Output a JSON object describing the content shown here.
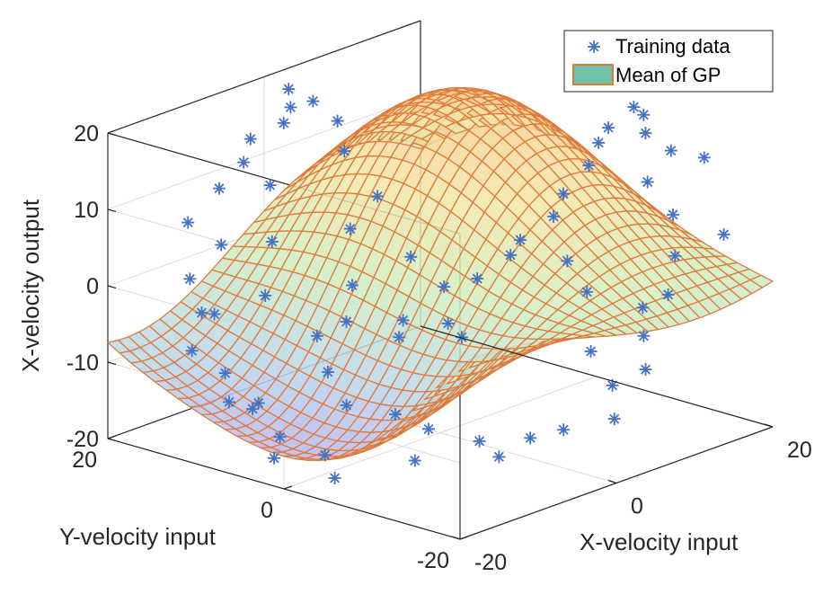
{
  "chart_data": {
    "type": "surface3d",
    "title": "",
    "xlabel": "X-velocity input",
    "ylabel": "Y-velocity input",
    "zlabel": "X-velocity output",
    "xlim": [
      -20,
      20
    ],
    "ylim": [
      -20,
      20
    ],
    "zlim": [
      -20,
      20
    ],
    "x_ticks": [
      -20,
      0,
      20
    ],
    "y_ticks": [
      -20,
      0,
      20
    ],
    "z_ticks": [
      -20,
      -10,
      0,
      10,
      20
    ],
    "grid": true,
    "legend": {
      "position": "top-right",
      "entries": [
        {
          "label": "Training data",
          "marker": "asterisk",
          "color": "#4472c4"
        },
        {
          "label": "Mean of GP",
          "marker": "patch",
          "color": "#6fc3a8",
          "edge": "#e07a3c"
        }
      ]
    },
    "series": [
      {
        "name": "Training data",
        "kind": "scatter3d",
        "color": "#4472c4",
        "points": [
          [
            -18,
            -4,
            -18
          ],
          [
            -17,
            -2,
            -16
          ],
          [
            -19,
            2,
            -17
          ],
          [
            -16,
            4,
            -16
          ],
          [
            -15,
            8,
            -14
          ],
          [
            -12,
            10,
            -15
          ],
          [
            -18,
            8,
            -12
          ],
          [
            -14,
            12,
            -11
          ],
          [
            -16,
            14,
            -8
          ],
          [
            -12,
            15,
            -5
          ],
          [
            -17,
            12,
            -2
          ],
          [
            -14,
            16,
            0
          ],
          [
            -10,
            16,
            3
          ],
          [
            -12,
            18,
            6
          ],
          [
            -8,
            18,
            9
          ],
          [
            -6,
            17,
            12
          ],
          [
            -4,
            18,
            14
          ],
          [
            -2,
            16,
            16
          ],
          [
            0,
            17,
            17
          ],
          [
            -6,
            14,
            10
          ],
          [
            -8,
            12,
            4
          ],
          [
            -10,
            11,
            -2
          ],
          [
            -9,
            6,
            -6
          ],
          [
            -11,
            3,
            -9
          ],
          [
            -12,
            0,
            -12
          ],
          [
            -8,
            -2,
            -14
          ],
          [
            -6,
            -4,
            -16
          ],
          [
            -10,
            -6,
            -18
          ],
          [
            -4,
            -8,
            -17
          ],
          [
            -2,
            -12,
            -16
          ],
          [
            0,
            -14,
            -15
          ],
          [
            -6,
            -12,
            -17
          ],
          [
            2,
            -18,
            -13
          ],
          [
            6,
            -18,
            -8
          ],
          [
            4,
            -16,
            -10
          ],
          [
            8,
            -16,
            -5
          ],
          [
            10,
            -17,
            0
          ],
          [
            9,
            -15,
            -2
          ],
          [
            12,
            -16,
            4
          ],
          [
            14,
            -14,
            8
          ],
          [
            13,
            -12,
            12
          ],
          [
            16,
            -12,
            15
          ],
          [
            15,
            -10,
            17
          ],
          [
            17,
            -8,
            18
          ],
          [
            18,
            -6,
            18
          ],
          [
            17,
            -4,
            15
          ],
          [
            18,
            -2,
            12
          ],
          [
            19,
            0,
            8
          ],
          [
            18,
            2,
            4
          ],
          [
            19,
            4,
            0
          ],
          [
            17,
            6,
            -3
          ],
          [
            18,
            8,
            -6
          ],
          [
            16,
            10,
            -9
          ],
          [
            14,
            12,
            -10
          ],
          [
            12,
            14,
            -6
          ],
          [
            10,
            16,
            2
          ],
          [
            8,
            18,
            8
          ],
          [
            6,
            17,
            13
          ],
          [
            4,
            18,
            16
          ],
          [
            2,
            19,
            18
          ],
          [
            10,
            8,
            -12
          ],
          [
            6,
            10,
            -13
          ],
          [
            8,
            -10,
            -9
          ],
          [
            12,
            -6,
            -4
          ],
          [
            14,
            -2,
            -2
          ],
          [
            5,
            2,
            -10
          ],
          [
            2,
            6,
            -8
          ],
          [
            0,
            10,
            -4
          ],
          [
            2,
            12,
            2
          ],
          [
            -3,
            8,
            -7
          ],
          [
            16,
            -18,
            6
          ],
          [
            18,
            -14,
            14
          ]
        ]
      },
      {
        "name": "Mean of GP",
        "kind": "surface",
        "edge_color": "#e07a3c",
        "colormap": [
          "#b7a7f2",
          "#b9d6ec",
          "#cfeec0",
          "#f3e6a6",
          "#f7c98c"
        ],
        "function": "z = 17*sin(x/9 + 0.4) * cos(y/14 - 0.3) + 2*sin(y/6)",
        "grid_size": [
          31,
          31
        ]
      }
    ]
  }
}
